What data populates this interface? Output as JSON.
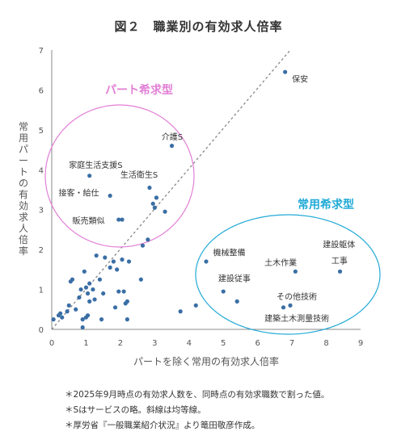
{
  "title": "図２　職業別の有効求人倍率",
  "chart_data": {
    "type": "scatter",
    "xlabel": "パートを除く常用の有効求人倍率",
    "ylabel": "常用パートの有効求人倍率",
    "xlim": [
      0,
      9
    ],
    "ylim": [
      0,
      7
    ],
    "xticks": [
      "0",
      "1",
      "2",
      "3",
      "4",
      "5",
      "6",
      "7",
      "8",
      "9"
    ],
    "yticks": [
      "0",
      "1",
      "2",
      "3",
      "4",
      "5",
      "6",
      "7"
    ],
    "diagonal_line": "dotted",
    "point_color": "#3a6ea5",
    "points": [
      {
        "x": 0.05,
        "y": 0.25
      },
      {
        "x": 0.2,
        "y": 0.35
      },
      {
        "x": 0.25,
        "y": 0.4
      },
      {
        "x": 0.3,
        "y": 0.3
      },
      {
        "x": 0.45,
        "y": 0.45
      },
      {
        "x": 0.5,
        "y": 0.6
      },
      {
        "x": 0.55,
        "y": 1.2
      },
      {
        "x": 0.6,
        "y": 1.25
      },
      {
        "x": 0.7,
        "y": 0.5
      },
      {
        "x": 0.8,
        "y": 0.8
      },
      {
        "x": 0.85,
        "y": 1.0
      },
      {
        "x": 0.9,
        "y": 0.25
      },
      {
        "x": 0.9,
        "y": 0.05
      },
      {
        "x": 0.95,
        "y": 1.45
      },
      {
        "x": 1.0,
        "y": 0.3
      },
      {
        "x": 1.05,
        "y": 0.35
      },
      {
        "x": 1.0,
        "y": 1.05
      },
      {
        "x": 1.05,
        "y": 0.9
      },
      {
        "x": 1.1,
        "y": 0.7
      },
      {
        "x": 1.1,
        "y": 1.15
      },
      {
        "x": 1.2,
        "y": 1.0
      },
      {
        "x": 1.25,
        "y": 0.75
      },
      {
        "x": 1.3,
        "y": 1.85
      },
      {
        "x": 1.4,
        "y": 1.25
      },
      {
        "x": 1.45,
        "y": 0.25
      },
      {
        "x": 1.5,
        "y": 0.9
      },
      {
        "x": 1.55,
        "y": 1.8
      },
      {
        "x": 1.7,
        "y": 1.55
      },
      {
        "x": 1.8,
        "y": 1.7
      },
      {
        "x": 1.85,
        "y": 0.55
      },
      {
        "x": 1.9,
        "y": 1.5
      },
      {
        "x": 1.95,
        "y": 0.95
      },
      {
        "x": 2.05,
        "y": 1.75
      },
      {
        "x": 2.1,
        "y": 0.95
      },
      {
        "x": 2.15,
        "y": 0.65
      },
      {
        "x": 2.2,
        "y": 0.7
      },
      {
        "x": 2.2,
        "y": 0.25
      },
      {
        "x": 2.25,
        "y": 1.7
      },
      {
        "x": 2.6,
        "y": 1.25
      },
      {
        "x": 2.65,
        "y": 2.1
      },
      {
        "x": 2.8,
        "y": 2.25
      },
      {
        "x": 2.85,
        "y": 3.55
      },
      {
        "x": 2.95,
        "y": 3.15
      },
      {
        "x": 3.0,
        "y": 3.05
      },
      {
        "x": 3.05,
        "y": 3.3
      },
      {
        "x": 3.3,
        "y": 2.95
      },
      {
        "x": 3.5,
        "y": 4.6
      },
      {
        "x": 3.75,
        "y": 0.45
      },
      {
        "x": 4.2,
        "y": 0.6
      },
      {
        "x": 1.1,
        "y": 3.85
      },
      {
        "x": 1.7,
        "y": 3.35
      },
      {
        "x": 1.95,
        "y": 2.75
      },
      {
        "x": 2.05,
        "y": 2.75
      },
      {
        "x": 6.8,
        "y": 6.45
      },
      {
        "x": 4.5,
        "y": 1.7
      },
      {
        "x": 5.0,
        "y": 0.95
      },
      {
        "x": 7.1,
        "y": 1.45
      },
      {
        "x": 8.4,
        "y": 1.45
      },
      {
        "x": 6.75,
        "y": 0.55
      },
      {
        "x": 6.95,
        "y": 0.6
      },
      {
        "x": 5.4,
        "y": 0.7
      }
    ],
    "point_labels": [
      {
        "text": "保安",
        "x": 7.0,
        "y": 6.2
      },
      {
        "text": "介護S",
        "x": 3.2,
        "y": 4.75
      },
      {
        "text": "家庭生活支援S",
        "x": 0.5,
        "y": 4.05
      },
      {
        "text": "生活衛生S",
        "x": 2.0,
        "y": 3.8
      },
      {
        "text": "接客・給仕",
        "x": 0.2,
        "y": 3.35
      },
      {
        "text": "販売類似",
        "x": 0.6,
        "y": 2.65
      },
      {
        "text": "機械整備",
        "x": 4.7,
        "y": 1.85
      },
      {
        "text": "建設躯体",
        "x": 7.9,
        "y": 2.05
      },
      {
        "text": "工事",
        "x": 8.15,
        "y": 1.65
      },
      {
        "text": "土木作業",
        "x": 6.2,
        "y": 1.6
      },
      {
        "text": "建設従事",
        "x": 4.85,
        "y": 1.2
      },
      {
        "text": "その他技術",
        "x": 6.55,
        "y": 0.75
      },
      {
        "text": "建築土木測量技術",
        "x": 6.2,
        "y": 0.2
      }
    ],
    "annotations": [
      {
        "text": "パート希求型",
        "color": "#e27fd6"
      },
      {
        "text": "常用希求型",
        "color": "#22aad6"
      }
    ]
  },
  "notes": [
    "＊2025年9月時点の有効求人数を、同時点の有効求職数で割った値。",
    "＊Sはサービスの略。斜線は均等線。",
    "＊厚労省『一般職業紹介状況』より篭田敬彦作成。"
  ]
}
